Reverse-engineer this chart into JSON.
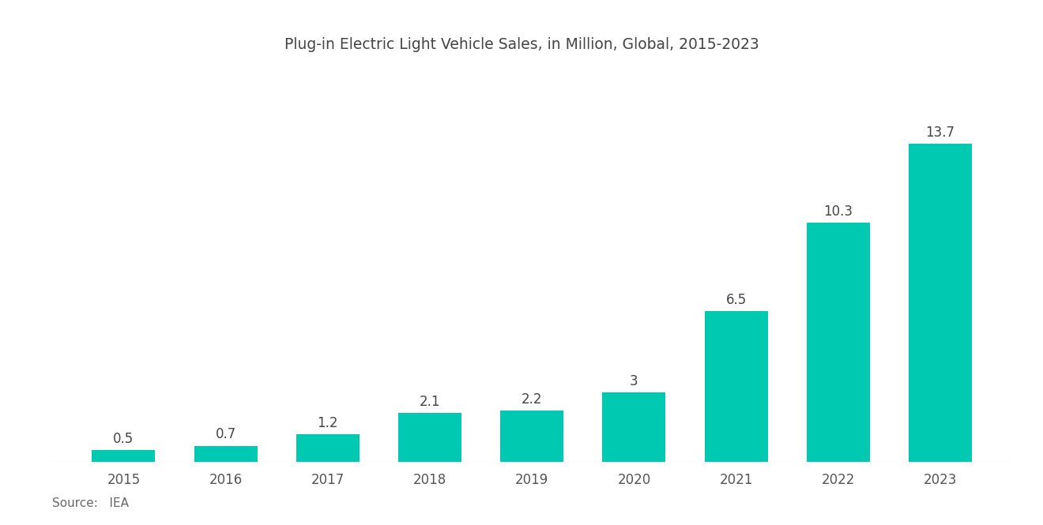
{
  "title": "Plug-in Electric Light Vehicle Sales, in Million, Global, 2015-2023",
  "years": [
    "2015",
    "2016",
    "2017",
    "2018",
    "2019",
    "2020",
    "2021",
    "2022",
    "2023"
  ],
  "values": [
    0.5,
    0.7,
    1.2,
    2.1,
    2.2,
    3,
    6.5,
    10.3,
    13.7
  ],
  "bar_color": "#00C9B1",
  "background_color": "#ffffff",
  "title_fontsize": 13.5,
  "label_fontsize": 12,
  "tick_fontsize": 12,
  "source_text": "Source:   IEA",
  "source_fontsize": 11,
  "title_color": "#444444",
  "tick_color": "#555555",
  "label_color": "#444444",
  "source_color": "#666666",
  "bar_width": 0.62,
  "ylim_max": 16.5
}
